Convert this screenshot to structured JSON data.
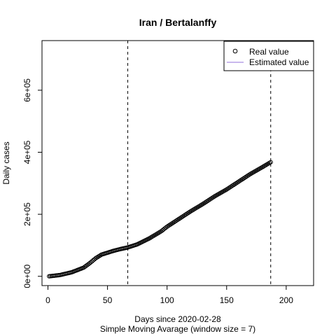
{
  "chart_data": {
    "type": "scatter",
    "title": "Iran / Bertalanffy",
    "xlabel": "Days since 2020-02-28",
    "subtitle": "Simple Moving Avarage (window size = 7)",
    "ylabel": "Daily cases",
    "xlim": [
      -5,
      223
    ],
    "ylim": [
      -30000,
      760000
    ],
    "xticks": [
      0,
      50,
      100,
      150,
      200
    ],
    "xtick_labels": [
      "0",
      "50",
      "100",
      "150",
      "200"
    ],
    "yticks": [
      0,
      200000,
      400000,
      600000
    ],
    "ytick_labels": [
      "0e+00",
      "2e+05",
      "4e+05",
      "6e+05"
    ],
    "vlines": [
      67,
      187
    ],
    "legend": {
      "position": "top-right",
      "entries": [
        {
          "label": "Real value",
          "marker": "circle",
          "color": "#000000"
        },
        {
          "label": "Estimated value",
          "marker": "line",
          "color": "#9370DB"
        }
      ]
    },
    "series": [
      {
        "name": "Real value",
        "marker": "circle",
        "color": "#000000",
        "keypoints": [
          [
            1,
            0
          ],
          [
            10,
            4000
          ],
          [
            20,
            13000
          ],
          [
            30,
            28000
          ],
          [
            35,
            42000
          ],
          [
            40,
            58000
          ],
          [
            45,
            70000
          ],
          [
            50,
            76000
          ],
          [
            55,
            82000
          ],
          [
            60,
            87000
          ],
          [
            67,
            93000
          ],
          [
            75,
            103000
          ],
          [
            85,
            122000
          ],
          [
            95,
            145000
          ],
          [
            100,
            160000
          ],
          [
            110,
            185000
          ],
          [
            120,
            210000
          ],
          [
            130,
            233000
          ],
          [
            140,
            258000
          ],
          [
            150,
            280000
          ],
          [
            160,
            305000
          ],
          [
            170,
            330000
          ],
          [
            180,
            352000
          ],
          [
            187,
            368000
          ]
        ]
      },
      {
        "name": "Estimated value",
        "marker": "line",
        "color": "#9370DB",
        "keypoints": []
      }
    ]
  }
}
